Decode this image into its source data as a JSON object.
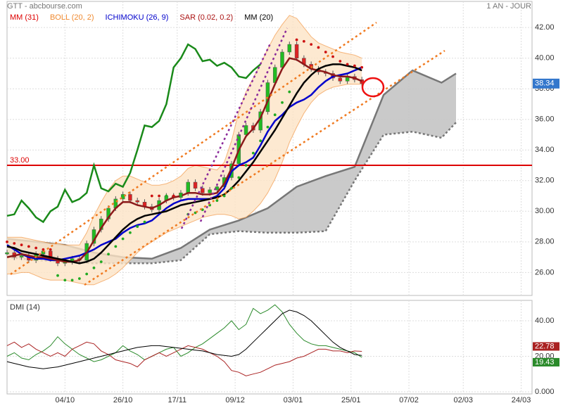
{
  "chart_data": {
    "type": "candlestick",
    "title": "GTT - abcbourse.com",
    "timeframe": "1 AN - JOUR",
    "x": [
      0,
      2,
      4,
      6,
      8,
      10,
      12,
      14,
      16,
      18,
      20,
      22,
      24,
      26,
      28,
      30,
      32,
      34,
      36,
      38,
      40,
      42,
      44,
      46,
      48,
      50,
      52,
      54,
      56,
      58,
      60,
      62,
      64,
      66,
      68,
      70,
      72,
      74,
      76,
      78,
      80,
      82,
      84,
      86,
      88,
      90,
      92,
      94,
      96,
      98
    ],
    "xlim": [
      0,
      145
    ],
    "xticks": [
      {
        "value": 16,
        "label": "04/10"
      },
      {
        "value": 32,
        "label": "26/10"
      },
      {
        "value": 47,
        "label": "17/11"
      },
      {
        "value": 63,
        "label": "09/12"
      },
      {
        "value": 79,
        "label": "03/01"
      },
      {
        "value": 95,
        "label": "25/01"
      },
      {
        "value": 111,
        "label": "07/02"
      },
      {
        "value": 126,
        "label": "02/03"
      },
      {
        "value": 142,
        "label": "24/03"
      }
    ],
    "ylim": [
      24.5,
      43.8
    ],
    "yticks": [
      {
        "value": 26,
        "label": "26.00"
      },
      {
        "value": 28,
        "label": "28.00"
      },
      {
        "value": 30,
        "label": "30.00"
      },
      {
        "value": 32,
        "label": "32.00"
      },
      {
        "value": 34,
        "label": "34.00"
      },
      {
        "value": 36,
        "label": "36.00"
      },
      {
        "value": 38,
        "label": "38.00"
      },
      {
        "value": 40,
        "label": "40.00"
      },
      {
        "value": 42,
        "label": "42.00"
      }
    ],
    "grid": true,
    "up_color": "#22bb22",
    "down_color": "#dd2222",
    "close": [
      27.3,
      27.0,
      27.1,
      26.8,
      27.2,
      27.4,
      26.9,
      26.6,
      26.7,
      26.9,
      26.8,
      27.9,
      28.8,
      29.5,
      30.2,
      30.8,
      31.1,
      30.7,
      30.6,
      30.3,
      30.1,
      30.7,
      31.0,
      30.9,
      31.2,
      31.9,
      31.5,
      31.2,
      31.4,
      31.6,
      32.2,
      33.1,
      35.0,
      35.6,
      35.3,
      36.5,
      38.4,
      39.4,
      40.4,
      40.9,
      40.0,
      39.6,
      39.3,
      39.1,
      39.0,
      38.7,
      38.5,
      38.8,
      38.6,
      38.34
    ],
    "series": [
      {
        "name": "MM (31)",
        "color": "#8b1a1a",
        "legend_color": "#dd0000",
        "values": [
          27.0,
          27.1,
          27.2,
          27.1,
          27.0,
          27.0,
          26.9,
          26.8,
          26.7,
          26.7,
          26.8,
          27.3,
          28.1,
          28.9,
          29.6,
          30.2,
          30.6,
          30.6,
          30.4,
          30.3,
          30.2,
          30.4,
          30.7,
          30.9,
          31.0,
          31.2,
          31.2,
          31.1,
          31.1,
          31.2,
          31.8,
          32.8,
          34.0,
          34.9,
          35.4,
          36.1,
          37.2,
          38.3,
          39.3,
          40.0,
          39.9,
          39.6,
          39.3,
          39.2,
          39.1,
          38.9,
          38.8,
          38.8,
          38.7,
          38.5
        ]
      },
      {
        "name": "MM (20)",
        "color": "#000000",
        "legend_color": "#000000",
        "values": [
          27.7,
          27.6,
          27.4,
          27.3,
          27.2,
          27.1,
          27.0,
          26.9,
          26.8,
          26.7,
          26.6,
          26.7,
          26.9,
          27.3,
          27.8,
          28.3,
          28.8,
          29.2,
          29.5,
          29.7,
          29.8,
          29.9,
          30.0,
          30.2,
          30.4,
          30.5,
          30.6,
          30.7,
          30.8,
          30.9,
          31.1,
          31.5,
          32.0,
          32.6,
          33.2,
          33.9,
          34.6,
          35.3,
          36.1,
          36.9,
          37.7,
          38.4,
          38.9,
          39.3,
          39.5,
          39.6,
          39.6,
          39.5,
          39.4,
          39.2
        ]
      }
    ],
    "bollinger": {
      "name": "BOLL (20, 2)",
      "color": "#f08a30",
      "fill": "#fde3c6",
      "upper": [
        28.3,
        28.3,
        28.3,
        28.2,
        28.1,
        28.0,
        27.9,
        27.9,
        27.8,
        27.8,
        27.8,
        28.6,
        29.7,
        30.6,
        31.4,
        32.0,
        32.3,
        32.3,
        32.1,
        31.9,
        31.7,
        31.7,
        31.8,
        32.0,
        32.3,
        32.8,
        33.0,
        32.9,
        32.8,
        32.7,
        33.2,
        34.6,
        36.5,
        37.8,
        38.7,
        39.6,
        40.6,
        41.5,
        42.2,
        42.8,
        42.6,
        42.0,
        41.4,
        41.0,
        40.8,
        40.6,
        40.4,
        40.3,
        40.2,
        40.0
      ],
      "lower": [
        25.9,
        25.9,
        26.0,
        26.0,
        25.8,
        25.6,
        25.5,
        25.5,
        25.5,
        25.4,
        25.3,
        25.2,
        25.2,
        25.4,
        25.6,
        25.9,
        26.3,
        26.8,
        27.3,
        27.7,
        28.0,
        28.3,
        28.6,
        28.8,
        29.0,
        29.2,
        29.4,
        29.6,
        29.7,
        29.8,
        29.8,
        29.7,
        29.5,
        29.6,
        30.0,
        30.5,
        31.2,
        32.1,
        33.2,
        34.5,
        35.5,
        36.4,
        37.1,
        37.6,
        37.9,
        38.1,
        38.2,
        38.3,
        38.3,
        38.3
      ]
    },
    "ichimoku": {
      "name": "ICHIMOKU (26, 9)",
      "color": "#0000cc",
      "chikou_color": "#1a8a1a",
      "cloud_fill": "#c4c4c4",
      "cloud_edge": "#777777",
      "values": [
        27.8,
        27.5,
        27.2,
        27.0,
        26.9,
        26.9,
        26.8,
        26.8,
        26.9,
        27.0,
        27.1,
        27.3,
        27.5,
        27.8,
        28.0,
        28.2,
        28.6,
        28.9,
        29.1,
        29.2,
        29.4,
        29.8,
        30.2,
        30.5,
        30.7,
        30.8,
        30.8,
        30.8,
        30.8,
        31.0,
        31.5,
        32.6,
        33.0,
        33.2,
        33.5,
        34.3,
        35.2,
        35.9,
        36.3,
        36.8,
        37.1,
        37.3,
        37.6,
        38.1,
        38.5,
        38.8,
        38.9,
        39.0,
        39.2,
        39.4
      ],
      "chikou_x": [
        0,
        2,
        4,
        6,
        8,
        10,
        12,
        14,
        16,
        18,
        20,
        22,
        24,
        26,
        28,
        30,
        32,
        34,
        36,
        38,
        40,
        42,
        44,
        46,
        48,
        50,
        52,
        54,
        56,
        58,
        60,
        62,
        64,
        66,
        68,
        70
      ],
      "chikou": [
        29.7,
        29.8,
        30.7,
        30.2,
        29.6,
        29.3,
        30.0,
        30.3,
        31.4,
        30.6,
        30.8,
        31.2,
        33.0,
        31.5,
        31.3,
        31.8,
        31.6,
        32.5,
        34.0,
        35.6,
        35.5,
        35.9,
        37.0,
        39.4,
        40.0,
        40.9,
        40.6,
        39.8,
        39.9,
        39.5,
        39.7,
        39.4,
        38.8,
        38.7,
        39.2,
        39.6
      ],
      "cloud_x": [
        0,
        8,
        16,
        24,
        32,
        40,
        48,
        56,
        64,
        72,
        80,
        88,
        96,
        104,
        112,
        120,
        124
      ],
      "cloud_upper": [
        28.2,
        28.0,
        27.8,
        27.3,
        27.0,
        26.9,
        27.6,
        28.8,
        29.4,
        30.2,
        31.6,
        32.3,
        32.9,
        37.6,
        39.2,
        38.4,
        39.0
      ],
      "cloud_lower": [
        27.0,
        26.8,
        26.7,
        26.6,
        26.6,
        26.6,
        26.8,
        28.5,
        28.7,
        28.6,
        28.6,
        28.7,
        32.0,
        35.0,
        35.2,
        34.8,
        35.8
      ]
    },
    "sar": {
      "name": "SAR (0.02, 0.2)",
      "color": "#aa1111",
      "above_color": "#cc1111",
      "below_color": "#22aa22",
      "values": [
        28.0,
        27.9,
        27.8,
        27.7,
        27.6,
        27.5,
        27.5,
        25.8,
        25.5,
        25.5,
        25.6,
        25.9,
        26.3,
        26.7,
        27.2,
        27.7,
        28.2,
        28.6,
        29.0,
        29.3,
        31.0,
        31.0,
        31.0,
        31.0,
        31.0,
        29.8,
        29.9,
        30.1,
        30.4,
        30.7,
        31.0,
        31.5,
        32.2,
        33.0,
        33.8,
        34.6,
        35.5,
        36.3,
        37.1,
        37.8,
        41.2,
        41.1,
        40.9,
        40.7,
        40.4,
        40.1,
        39.8,
        39.6,
        39.5,
        39.4
      ]
    },
    "level": {
      "value": 33,
      "label": "33.00",
      "color": "#dd0000"
    },
    "last": 38.34,
    "last_color": "#3377cc",
    "dmi": {
      "type": "line",
      "title": "DMI (14)",
      "ylim": [
        -1.2,
        51.5
      ],
      "yticks": [
        {
          "value": 0,
          "label": "0.000"
        },
        {
          "value": 20,
          "label": "20.00"
        },
        {
          "value": 40,
          "label": "40.00"
        }
      ],
      "series": [
        {
          "color": "#2a8a2a",
          "values": [
            20,
            22,
            19,
            18,
            21,
            23,
            26,
            31,
            27,
            24,
            21,
            19,
            17,
            18,
            20,
            22,
            26,
            23,
            21,
            18,
            20,
            22,
            24,
            25,
            20,
            22,
            25,
            27,
            30,
            33,
            36,
            40,
            35,
            38,
            47,
            44,
            46,
            49,
            45,
            38,
            33,
            29,
            27,
            26,
            26,
            25,
            24,
            23,
            22,
            19.43
          ]
        },
        {
          "color": "#aa2222",
          "values": [
            26,
            28,
            25,
            27,
            24,
            22,
            20,
            22,
            20,
            24,
            26,
            28,
            27,
            23,
            21,
            18,
            17,
            16,
            14,
            18,
            20,
            22,
            20,
            22,
            24,
            26,
            25,
            24,
            22,
            20,
            17,
            12,
            11,
            9,
            10,
            11,
            13,
            15,
            16,
            17,
            19,
            20,
            22,
            24,
            24,
            23,
            23,
            22,
            23,
            22.78
          ]
        },
        {
          "color": "#000000",
          "values": [
            17,
            16,
            15,
            14,
            13.5,
            13,
            13.5,
            14,
            15,
            16,
            17,
            18,
            19,
            20,
            21,
            22,
            23,
            24,
            25,
            25.5,
            26,
            26,
            25.5,
            25,
            24.5,
            24,
            23.5,
            23,
            22,
            21,
            20.5,
            20,
            21,
            24,
            28,
            32,
            36,
            40,
            44,
            46,
            45,
            43,
            40,
            36,
            32,
            28,
            25,
            23,
            21,
            20.5
          ]
        }
      ]
    }
  }
}
